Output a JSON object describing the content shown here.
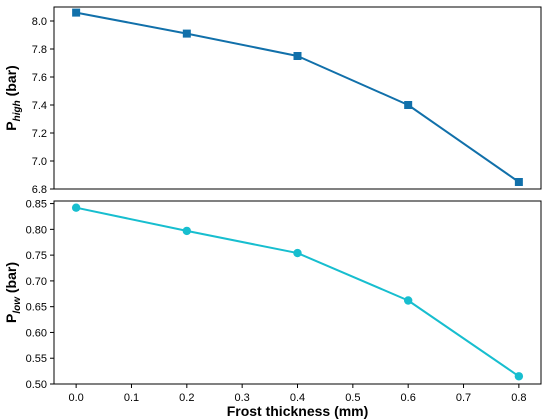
{
  "chart_data": [
    {
      "type": "line",
      "ylabel_main": "P",
      "ylabel_sub": "high",
      "ylabel_unit": " (bar)",
      "x": [
        0.0,
        0.2,
        0.4,
        0.6,
        0.8
      ],
      "series": [
        {
          "values": [
            8.06,
            7.91,
            7.75,
            7.4,
            6.85
          ],
          "color": "#1170aa",
          "marker": "square"
        }
      ],
      "ylim": [
        6.8,
        8.1
      ],
      "yticks": [
        6.8,
        7.0,
        7.2,
        7.4,
        7.6,
        7.8,
        8.0
      ],
      "ytick_labels": [
        "6.8",
        "7.0",
        "7.2",
        "7.4",
        "7.6",
        "7.8",
        "8.0"
      ],
      "xlim": [
        -0.04,
        0.84
      ],
      "grid": false
    },
    {
      "type": "line",
      "ylabel_main": "P",
      "ylabel_sub": "low",
      "ylabel_unit": " (bar)",
      "xlabel": "Frost thickness (mm)",
      "x": [
        0.0,
        0.2,
        0.4,
        0.6,
        0.8
      ],
      "series": [
        {
          "values": [
            0.842,
            0.797,
            0.754,
            0.662,
            0.515
          ],
          "color": "#17becf",
          "marker": "circle"
        }
      ],
      "ylim": [
        0.5,
        0.855
      ],
      "yticks": [
        0.5,
        0.55,
        0.6,
        0.65,
        0.7,
        0.75,
        0.8,
        0.85
      ],
      "ytick_labels": [
        "0.50",
        "0.55",
        "0.60",
        "0.65",
        "0.70",
        "0.75",
        "0.80",
        "0.85"
      ],
      "xticks": [
        0.0,
        0.1,
        0.2,
        0.3,
        0.4,
        0.5,
        0.6,
        0.7,
        0.8
      ],
      "xtick_labels": [
        "0.0",
        "0.1",
        "0.2",
        "0.3",
        "0.4",
        "0.5",
        "0.6",
        "0.7",
        "0.8"
      ],
      "xlim": [
        -0.04,
        0.84
      ],
      "grid": false
    }
  ]
}
